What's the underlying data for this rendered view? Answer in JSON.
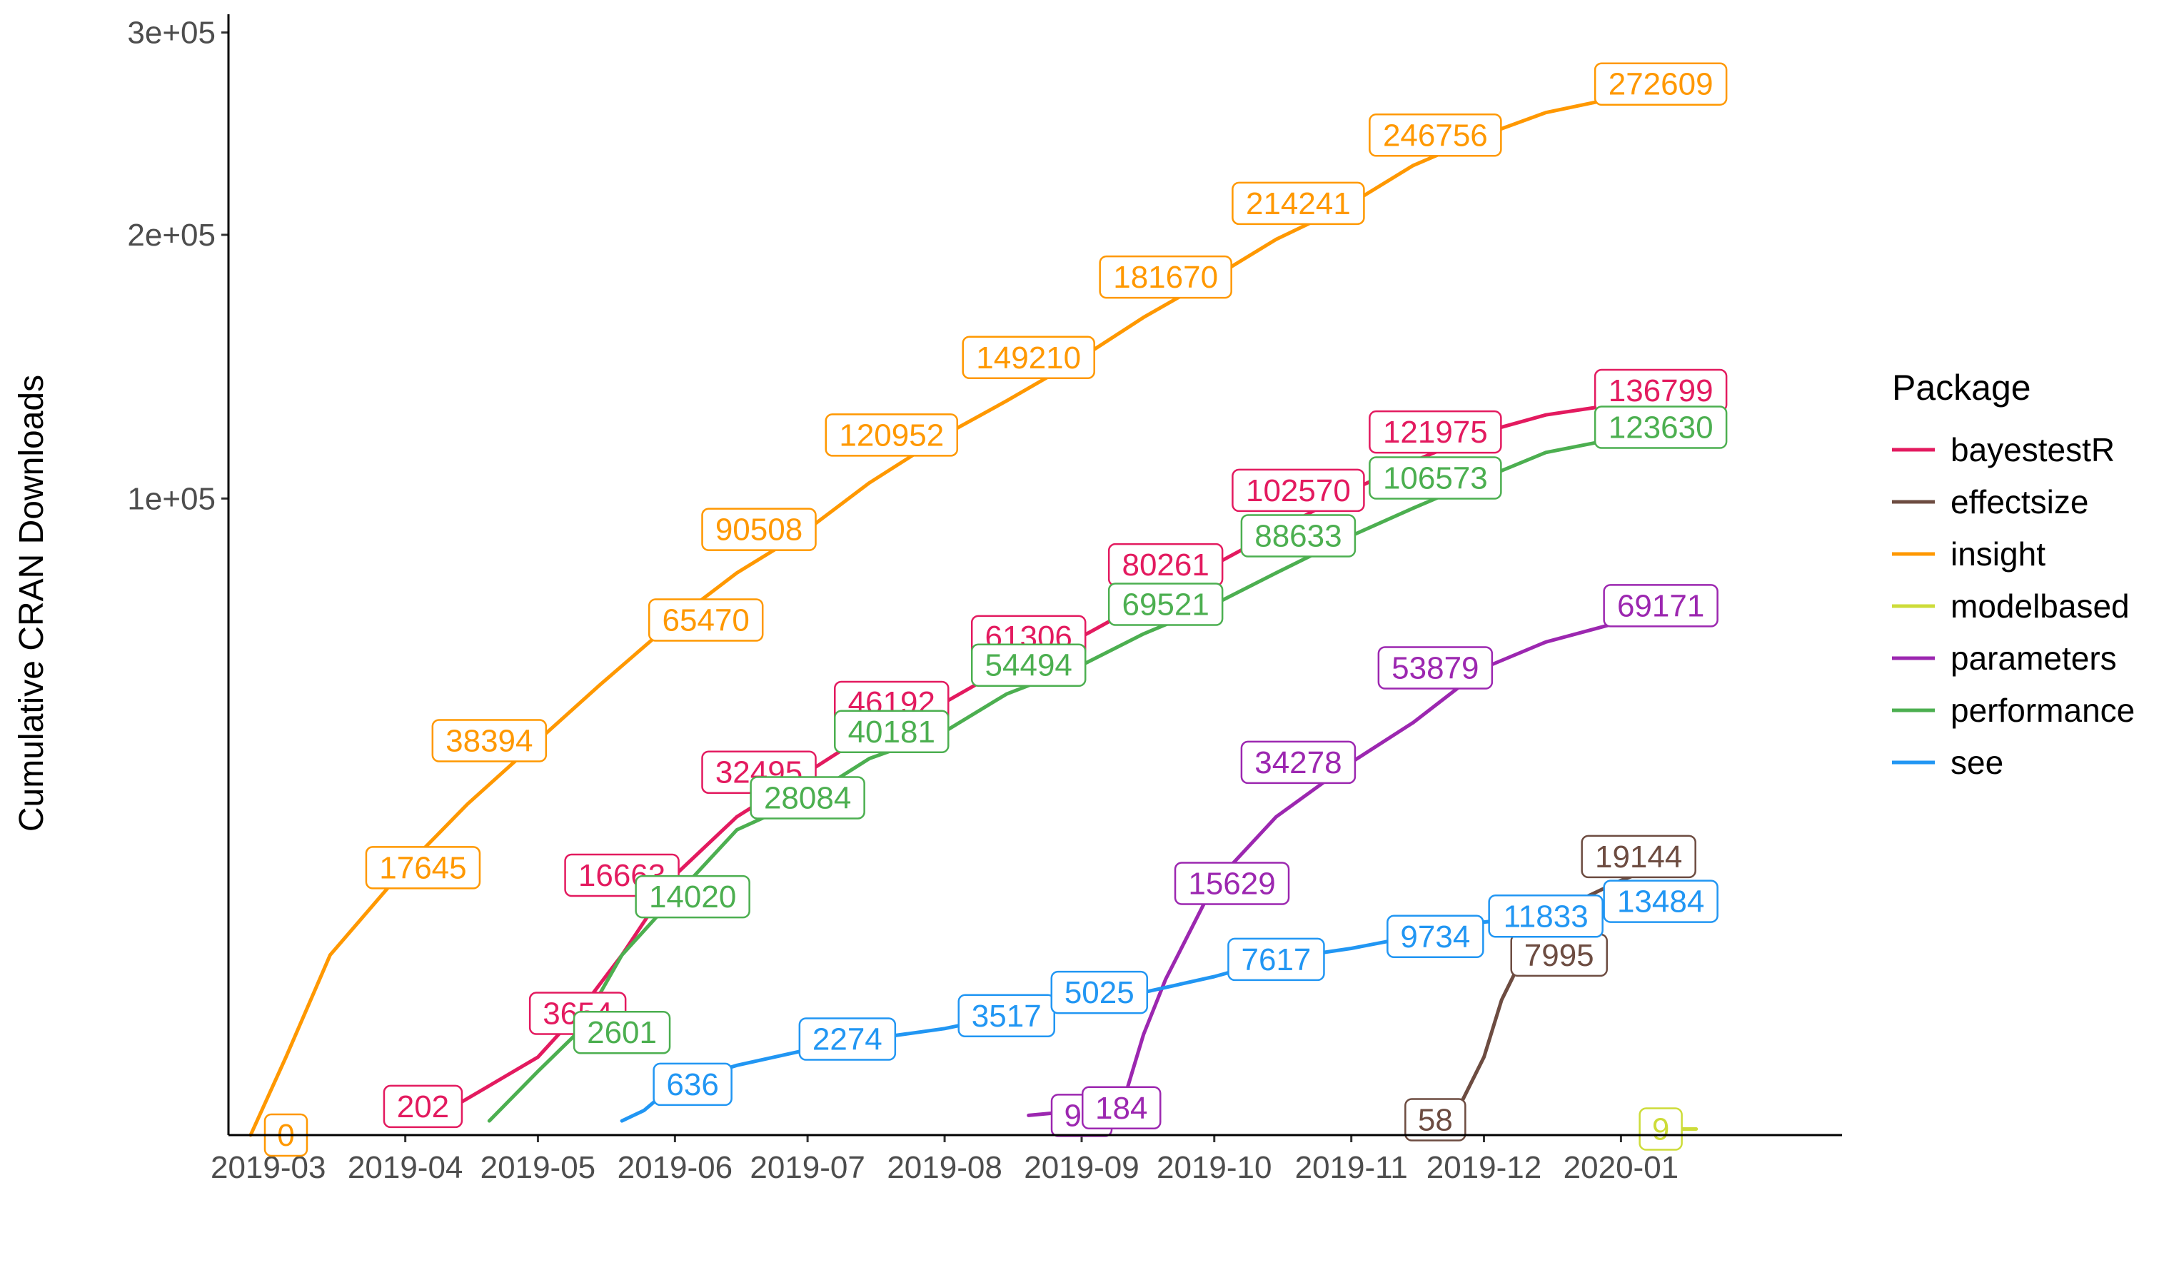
{
  "chart_data": {
    "type": "line",
    "title": "",
    "xlabel": "",
    "ylabel": "Cumulative CRAN Downloads",
    "y_scale": "sqrt",
    "ylim": [
      0,
      310000
    ],
    "yticks": [
      {
        "value": 100000,
        "label": "1e+05"
      },
      {
        "value": 200000,
        "label": "2e+05"
      },
      {
        "value": 300000,
        "label": "3e+05"
      }
    ],
    "xlim": [
      "2019-02-20",
      "2020-02-20"
    ],
    "xticks": [
      {
        "value": "2019-03-01",
        "label": "2019-03"
      },
      {
        "value": "2019-04-01",
        "label": "2019-04"
      },
      {
        "value": "2019-05-01",
        "label": "2019-05"
      },
      {
        "value": "2019-06-01",
        "label": "2019-06"
      },
      {
        "value": "2019-07-01",
        "label": "2019-07"
      },
      {
        "value": "2019-08-01",
        "label": "2019-08"
      },
      {
        "value": "2019-09-01",
        "label": "2019-09"
      },
      {
        "value": "2019-10-01",
        "label": "2019-10"
      },
      {
        "value": "2019-11-01",
        "label": "2019-11"
      },
      {
        "value": "2019-12-01",
        "label": "2019-12"
      },
      {
        "value": "2020-01-01",
        "label": "2020-01"
      }
    ],
    "grid": false,
    "legend": {
      "title": "Package",
      "position": "right"
    },
    "series": [
      {
        "name": "bayestestR",
        "color": "#e31a5f",
        "points": [
          [
            "2019-04-12",
            202
          ],
          [
            "2019-04-20",
            600
          ],
          [
            "2019-05-01",
            1500
          ],
          [
            "2019-05-10",
            3654
          ],
          [
            "2019-05-20",
            8000
          ],
          [
            "2019-06-01",
            16663
          ],
          [
            "2019-06-15",
            25000
          ],
          [
            "2019-07-01",
            32495
          ],
          [
            "2019-07-15",
            40000
          ],
          [
            "2019-08-01",
            46192
          ],
          [
            "2019-08-15",
            54000
          ],
          [
            "2019-09-01",
            61306
          ],
          [
            "2019-09-15",
            70000
          ],
          [
            "2019-10-01",
            80261
          ],
          [
            "2019-10-15",
            90000
          ],
          [
            "2019-11-01",
            102570
          ],
          [
            "2019-11-15",
            112000
          ],
          [
            "2019-12-01",
            121975
          ],
          [
            "2019-12-15",
            128000
          ],
          [
            "2020-01-01",
            132000
          ],
          [
            "2020-01-15",
            136799
          ]
        ],
        "labels": [
          [
            "2019-04-05",
            202,
            "202"
          ],
          [
            "2019-05-10",
            3654,
            "3654"
          ],
          [
            "2019-05-20",
            16663,
            "16663"
          ],
          [
            "2019-06-20",
            32495,
            "32495"
          ],
          [
            "2019-07-20",
            46192,
            "46192"
          ],
          [
            "2019-08-20",
            61306,
            "61306"
          ],
          [
            "2019-09-20",
            80261,
            "80261"
          ],
          [
            "2019-10-20",
            102570,
            "102570"
          ],
          [
            "2019-11-20",
            121975,
            "121975"
          ],
          [
            "2020-01-10",
            136799,
            "136799"
          ]
        ]
      },
      {
        "name": "effectsize",
        "color": "#6d4c41",
        "points": [
          [
            "2019-11-20",
            58
          ],
          [
            "2019-11-25",
            150
          ],
          [
            "2019-12-01",
            1500
          ],
          [
            "2019-12-05",
            4500
          ],
          [
            "2019-12-10",
            7995
          ],
          [
            "2019-12-20",
            13000
          ],
          [
            "2020-01-01",
            16000
          ],
          [
            "2020-01-15",
            19144
          ]
        ],
        "labels": [
          [
            "2019-11-20",
            58,
            "58"
          ],
          [
            "2019-12-18",
            7995,
            "7995"
          ],
          [
            "2020-01-05",
            19144,
            "19144"
          ]
        ]
      },
      {
        "name": "insight",
        "color": "#ff9800",
        "points": [
          [
            "2019-02-25",
            0
          ],
          [
            "2019-03-05",
            1500
          ],
          [
            "2019-03-15",
            8000
          ],
          [
            "2019-04-01",
            17645
          ],
          [
            "2019-04-15",
            27000
          ],
          [
            "2019-05-01",
            38394
          ],
          [
            "2019-05-15",
            50000
          ],
          [
            "2019-06-01",
            65470
          ],
          [
            "2019-06-15",
            78000
          ],
          [
            "2019-07-01",
            90508
          ],
          [
            "2019-07-15",
            105000
          ],
          [
            "2019-08-01",
            120952
          ],
          [
            "2019-08-15",
            133000
          ],
          [
            "2019-09-01",
            149210
          ],
          [
            "2019-09-15",
            165000
          ],
          [
            "2019-10-01",
            181670
          ],
          [
            "2019-10-15",
            198000
          ],
          [
            "2019-11-01",
            214241
          ],
          [
            "2019-11-15",
            232000
          ],
          [
            "2019-12-01",
            246756
          ],
          [
            "2019-12-15",
            258000
          ],
          [
            "2020-01-01",
            266000
          ],
          [
            "2020-01-15",
            272609
          ]
        ],
        "labels": [
          [
            "2019-03-05",
            0,
            "0"
          ],
          [
            "2019-04-05",
            17645,
            "17645"
          ],
          [
            "2019-04-20",
            38394,
            "38394"
          ],
          [
            "2019-06-08",
            65470,
            "65470"
          ],
          [
            "2019-06-20",
            90508,
            "90508"
          ],
          [
            "2019-07-20",
            120952,
            "120952"
          ],
          [
            "2019-08-20",
            149210,
            "149210"
          ],
          [
            "2019-09-20",
            181670,
            "181670"
          ],
          [
            "2019-10-20",
            214241,
            "214241"
          ],
          [
            "2019-11-20",
            246756,
            "246756"
          ],
          [
            "2020-01-10",
            272609,
            "272609"
          ]
        ]
      },
      {
        "name": "modelbased",
        "color": "#cddc39",
        "points": [
          [
            "2020-01-15",
            9
          ],
          [
            "2020-01-18",
            9
          ]
        ],
        "labels": [
          [
            "2020-01-10",
            9,
            "9"
          ]
        ]
      },
      {
        "name": "parameters",
        "color": "#9c27b0",
        "points": [
          [
            "2019-08-20",
            96
          ],
          [
            "2019-09-01",
            150
          ],
          [
            "2019-09-10",
            184
          ],
          [
            "2019-09-15",
            2500
          ],
          [
            "2019-09-20",
            6000
          ],
          [
            "2019-10-01",
            15629
          ],
          [
            "2019-10-15",
            25000
          ],
          [
            "2019-11-01",
            34278
          ],
          [
            "2019-11-15",
            42000
          ],
          [
            "2019-12-01",
            53879
          ],
          [
            "2019-12-15",
            60000
          ],
          [
            "2020-01-01",
            65000
          ],
          [
            "2020-01-15",
            69171
          ]
        ],
        "labels": [
          [
            "2019-09-01",
            96,
            "96"
          ],
          [
            "2019-09-10",
            184,
            "184"
          ],
          [
            "2019-10-05",
            15629,
            "15629"
          ],
          [
            "2019-10-20",
            34278,
            "34278"
          ],
          [
            "2019-11-20",
            53879,
            "53879"
          ],
          [
            "2020-01-10",
            69171,
            "69171"
          ]
        ]
      },
      {
        "name": "performance",
        "color": "#4caf50",
        "points": [
          [
            "2019-04-20",
            50
          ],
          [
            "2019-05-01",
            1000
          ],
          [
            "2019-05-10",
            2601
          ],
          [
            "2019-05-20",
            8000
          ],
          [
            "2019-06-01",
            14020
          ],
          [
            "2019-06-15",
            23000
          ],
          [
            "2019-07-01",
            28084
          ],
          [
            "2019-07-15",
            35000
          ],
          [
            "2019-08-01",
            40181
          ],
          [
            "2019-08-15",
            48000
          ],
          [
            "2019-09-01",
            54494
          ],
          [
            "2019-09-15",
            62000
          ],
          [
            "2019-10-01",
            69521
          ],
          [
            "2019-10-15",
            78000
          ],
          [
            "2019-11-01",
            88633
          ],
          [
            "2019-11-15",
            97000
          ],
          [
            "2019-12-01",
            106573
          ],
          [
            "2019-12-15",
            115000
          ],
          [
            "2020-01-01",
            120000
          ],
          [
            "2020-01-15",
            123630
          ]
        ],
        "labels": [
          [
            "2019-05-20",
            2601,
            "2601"
          ],
          [
            "2019-06-05",
            14020,
            "14020"
          ],
          [
            "2019-07-01",
            28084,
            "28084"
          ],
          [
            "2019-07-20",
            40181,
            "40181"
          ],
          [
            "2019-08-20",
            54494,
            "54494"
          ],
          [
            "2019-09-20",
            69521,
            "69521"
          ],
          [
            "2019-10-20",
            88633,
            "88633"
          ],
          [
            "2019-11-20",
            106573,
            "106573"
          ],
          [
            "2020-01-10",
            123630,
            "123630"
          ]
        ]
      },
      {
        "name": "see",
        "color": "#2196f3",
        "points": [
          [
            "2019-05-20",
            50
          ],
          [
            "2019-05-25",
            150
          ],
          [
            "2019-06-01",
            636
          ],
          [
            "2019-06-15",
            1200
          ],
          [
            "2019-07-01",
            1800
          ],
          [
            "2019-07-15",
            2274
          ],
          [
            "2019-08-01",
            2800
          ],
          [
            "2019-08-15",
            3517
          ],
          [
            "2019-09-01",
            4300
          ],
          [
            "2019-09-15",
            5025
          ],
          [
            "2019-10-01",
            6200
          ],
          [
            "2019-10-15",
            7617
          ],
          [
            "2019-11-01",
            8600
          ],
          [
            "2019-11-15",
            9734
          ],
          [
            "2019-12-01",
            11200
          ],
          [
            "2019-12-15",
            11833
          ],
          [
            "2020-01-01",
            12600
          ],
          [
            "2020-01-15",
            13484
          ]
        ],
        "labels": [
          [
            "2019-06-05",
            636,
            "636"
          ],
          [
            "2019-07-10",
            2274,
            "2274"
          ],
          [
            "2019-08-15",
            3517,
            "3517"
          ],
          [
            "2019-09-05",
            5025,
            "5025"
          ],
          [
            "2019-10-15",
            7617,
            "7617"
          ],
          [
            "2019-11-20",
            9734,
            "9734"
          ],
          [
            "2019-12-15",
            11833,
            "11833"
          ],
          [
            "2020-01-10",
            13484,
            "13484"
          ]
        ]
      }
    ]
  }
}
